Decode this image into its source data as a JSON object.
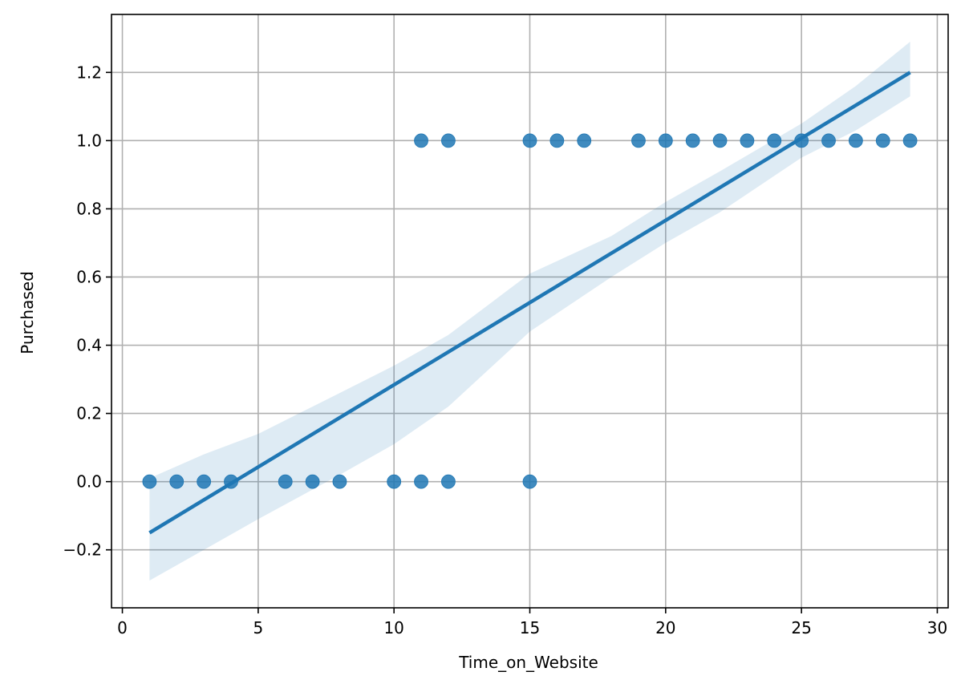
{
  "chart_data": {
    "type": "scatter",
    "title": "",
    "xlabel": "Time_on_Website",
    "ylabel": "Purchased",
    "xlim": [
      -0.4,
      30.4
    ],
    "ylim": [
      -0.37,
      1.37
    ],
    "xticks": [
      0,
      5,
      10,
      15,
      20,
      25,
      30
    ],
    "xtick_labels": [
      "0",
      "5",
      "10",
      "15",
      "20",
      "25",
      "30"
    ],
    "yticks": [
      -0.2,
      0.0,
      0.2,
      0.4,
      0.6,
      0.8,
      1.0,
      1.2
    ],
    "ytick_labels": [
      "−0.2",
      "0.0",
      "0.2",
      "0.4",
      "0.6",
      "0.8",
      "1.0",
      "1.2"
    ],
    "grid": true,
    "points": [
      {
        "x": 1,
        "y": 0
      },
      {
        "x": 2,
        "y": 0
      },
      {
        "x": 3,
        "y": 0
      },
      {
        "x": 4,
        "y": 0
      },
      {
        "x": 6,
        "y": 0
      },
      {
        "x": 7,
        "y": 0
      },
      {
        "x": 8,
        "y": 0
      },
      {
        "x": 10,
        "y": 0
      },
      {
        "x": 11,
        "y": 0
      },
      {
        "x": 12,
        "y": 0
      },
      {
        "x": 15,
        "y": 0
      },
      {
        "x": 11,
        "y": 1
      },
      {
        "x": 12,
        "y": 1
      },
      {
        "x": 15,
        "y": 1
      },
      {
        "x": 16,
        "y": 1
      },
      {
        "x": 17,
        "y": 1
      },
      {
        "x": 19,
        "y": 1
      },
      {
        "x": 20,
        "y": 1
      },
      {
        "x": 21,
        "y": 1
      },
      {
        "x": 22,
        "y": 1
      },
      {
        "x": 23,
        "y": 1
      },
      {
        "x": 24,
        "y": 1
      },
      {
        "x": 25,
        "y": 1
      },
      {
        "x": 26,
        "y": 1
      },
      {
        "x": 27,
        "y": 1
      },
      {
        "x": 28,
        "y": 1
      },
      {
        "x": 29,
        "y": 1
      }
    ],
    "regression_line": {
      "x": [
        1,
        29
      ],
      "y": [
        -0.15,
        1.2
      ]
    },
    "confidence_band": {
      "x": [
        1,
        3,
        5,
        8,
        10,
        12,
        15,
        18,
        20,
        22,
        25,
        27,
        29
      ],
      "upper": [
        0.01,
        0.08,
        0.14,
        0.26,
        0.34,
        0.43,
        0.61,
        0.72,
        0.82,
        0.91,
        1.05,
        1.16,
        1.29
      ],
      "lower": [
        -0.29,
        -0.2,
        -0.11,
        0.02,
        0.11,
        0.22,
        0.44,
        0.6,
        0.7,
        0.79,
        0.95,
        1.03,
        1.13
      ]
    },
    "colors": {
      "points": "#1f77b4",
      "line": "#1f77b4",
      "band": "#1f77b4",
      "grid": "#b0b0b0",
      "axes": "#000000"
    }
  }
}
